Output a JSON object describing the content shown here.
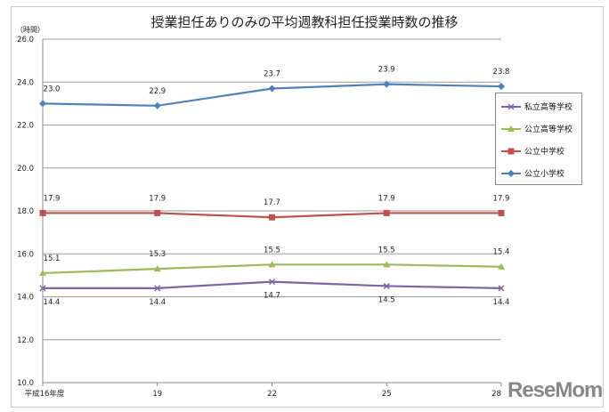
{
  "chart_data": {
    "type": "line",
    "title": "授業担任ありのみの平均週教科担任授業時数の推移",
    "ylabel": "（時間）",
    "categories": [
      "平成16年度",
      "19",
      "22",
      "25",
      "28"
    ],
    "ylim": [
      10,
      26
    ],
    "yticks": [
      "10.0",
      "12.0",
      "14.0",
      "16.0",
      "18.0",
      "20.0",
      "22.0",
      "24.0",
      "26.0"
    ],
    "grid": true,
    "legend_position": "right",
    "series": [
      {
        "name": "私立高等学校",
        "values": [
          14.4,
          14.4,
          14.7,
          14.5,
          14.4
        ],
        "color": "#8064a2",
        "marker": "x",
        "label_pos": "below"
      },
      {
        "name": "公立高等学校",
        "values": [
          15.1,
          15.3,
          15.5,
          15.5,
          15.4
        ],
        "color": "#9bbb59",
        "marker": "triangle",
        "label_pos": "above"
      },
      {
        "name": "公立中学校",
        "values": [
          17.9,
          17.9,
          17.7,
          17.9,
          17.9
        ],
        "color": "#c0504d",
        "marker": "square",
        "label_pos": "above"
      },
      {
        "name": "公立小学校",
        "values": [
          23.0,
          22.9,
          23.7,
          23.9,
          23.8
        ],
        "color": "#4f81bd",
        "marker": "diamond",
        "label_pos": "above"
      }
    ]
  },
  "watermark": "ReseMom"
}
